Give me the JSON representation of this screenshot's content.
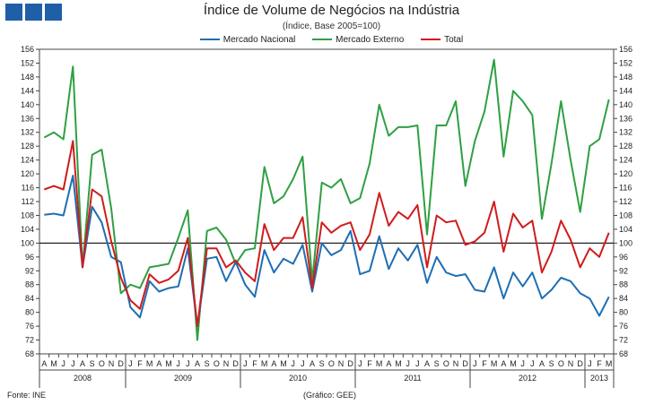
{
  "header": {
    "title": "Índice de Volume de Negócios na Indústria",
    "subtitle": "(Índice, Base 2005=100)"
  },
  "footer": {
    "source": "Fonte: INE",
    "credit": "(Gráfico: GEE)"
  },
  "colors": {
    "logo": "#1f5fa8",
    "nacional": "#1f6eb4",
    "externo": "#2ea043",
    "total": "#d01c1c"
  },
  "chart_data": {
    "type": "line",
    "title": "Índice de Volume de Negócios na Indústria",
    "subtitle": "(Índice, Base 2005=100)",
    "ylim": [
      68,
      156
    ],
    "yticks": [
      68,
      72,
      76,
      80,
      84,
      88,
      92,
      96,
      100,
      104,
      108,
      112,
      116,
      120,
      124,
      128,
      132,
      136,
      140,
      144,
      148,
      152,
      156
    ],
    "reference_line": 100,
    "legend_position": "top-center",
    "x": [
      "A",
      "M",
      "J",
      "J",
      "A",
      "S",
      "O",
      "N",
      "D",
      "J",
      "F",
      "M",
      "A",
      "M",
      "J",
      "J",
      "A",
      "S",
      "O",
      "N",
      "D",
      "J",
      "F",
      "M",
      "A",
      "M",
      "J",
      "J",
      "A",
      "S",
      "O",
      "N",
      "D",
      "J",
      "F",
      "M",
      "A",
      "M",
      "J",
      "J",
      "A",
      "S",
      "O",
      "N",
      "D",
      "J",
      "F",
      "M",
      "A",
      "M",
      "J",
      "J",
      "A",
      "S",
      "O",
      "N",
      "D",
      "J",
      "F",
      "M"
    ],
    "year_groups": [
      {
        "label": "2008",
        "start": 0,
        "count": 9
      },
      {
        "label": "2009",
        "start": 9,
        "count": 12
      },
      {
        "label": "2010",
        "start": 21,
        "count": 12
      },
      {
        "label": "2011",
        "start": 33,
        "count": 12
      },
      {
        "label": "2012",
        "start": 45,
        "count": 12
      },
      {
        "label": "2013",
        "start": 57,
        "count": 3
      }
    ],
    "series": [
      {
        "name": "Mercado Nacional",
        "color": "#1f6eb4",
        "values": [
          108.2,
          108.5,
          108.0,
          119.5,
          93.0,
          110.5,
          106.0,
          96.0,
          94.5,
          81.5,
          78.5,
          89.0,
          86.0,
          87.0,
          87.5,
          98.5,
          76.0,
          95.5,
          96.0,
          89.0,
          94.5,
          88.0,
          84.5,
          98.0,
          91.5,
          95.5,
          94.0,
          99.5,
          86.0,
          100.0,
          96.5,
          98.0,
          103.5,
          91.0,
          92.0,
          102.0,
          92.5,
          98.5,
          95.0,
          99.5,
          88.5,
          96.0,
          91.5,
          90.5,
          91.0,
          86.5,
          86.0,
          93.0,
          84.0,
          91.5,
          87.5,
          91.5,
          84.0,
          86.5,
          90.0,
          89.0,
          85.5,
          84.0,
          79.0,
          84.5
        ]
      },
      {
        "name": "Mercado Externo",
        "color": "#2ea043",
        "values": [
          130.5,
          132.0,
          130.0,
          151.0,
          93.0,
          125.5,
          127.0,
          110.0,
          85.5,
          88.0,
          87.0,
          93.0,
          93.5,
          94.0,
          101.5,
          109.5,
          72.0,
          103.5,
          104.5,
          101.0,
          94.0,
          98.0,
          98.5,
          122.0,
          111.5,
          113.5,
          118.5,
          125.0,
          89.0,
          117.5,
          116.0,
          118.5,
          111.5,
          113.0,
          123.0,
          140.0,
          131.0,
          133.5,
          133.5,
          134.0,
          102.5,
          134.0,
          134.0,
          141.0,
          116.5,
          129.5,
          138.0,
          153.0,
          125.0,
          144.0,
          141.0,
          137.0,
          107.0,
          123.0,
          141.0,
          124.0,
          109.0,
          128.0,
          130.0,
          141.5
        ]
      },
      {
        "name": "Total",
        "color": "#d01c1c",
        "values": [
          115.5,
          116.5,
          115.5,
          129.5,
          93.0,
          115.5,
          113.5,
          100.5,
          90.0,
          83.5,
          81.0,
          91.0,
          88.5,
          89.5,
          92.0,
          101.5,
          76.0,
          98.5,
          98.5,
          93.0,
          95.0,
          91.5,
          89.0,
          105.5,
          98.0,
          101.5,
          101.5,
          107.5,
          87.0,
          106.0,
          103.0,
          105.0,
          106.0,
          98.0,
          102.5,
          114.5,
          105.0,
          109.0,
          107.0,
          111.0,
          93.0,
          108.0,
          106.0,
          106.5,
          99.5,
          100.5,
          103.0,
          112.0,
          97.5,
          108.5,
          104.5,
          106.5,
          91.5,
          97.5,
          106.5,
          101.0,
          93.0,
          98.5,
          96.0,
          103.0
        ]
      }
    ]
  }
}
